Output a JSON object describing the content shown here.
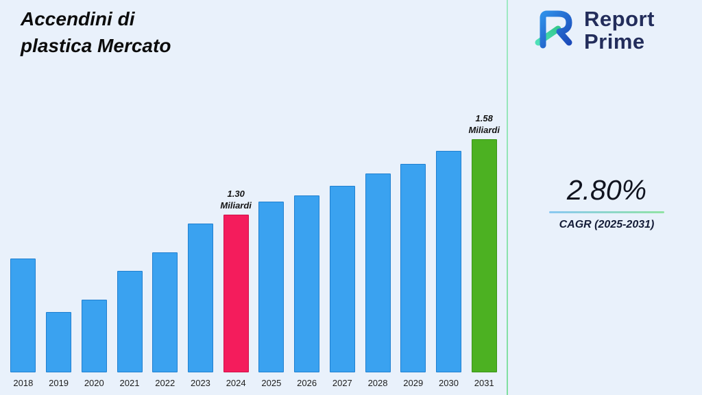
{
  "title": {
    "line1": "Accendini di",
    "line2": "plastica Mercato"
  },
  "logo": {
    "line1": "Report",
    "line2": "Prime"
  },
  "stats": {
    "value": "2.80%",
    "label": "CAGR (2025-2031)"
  },
  "colors": {
    "background": "#e9f1fb",
    "divider": "#8fe3ae",
    "navy": "#232d5b",
    "bar_blue": "#3aa2f0",
    "bar_pink": "#f41c5c",
    "bar_green": "#4cb122"
  },
  "chart_data": {
    "type": "bar",
    "title": "Accendini di plastica Mercato",
    "xlabel": "",
    "ylabel": "",
    "unit": "Miliardi",
    "categories": [
      "2018",
      "2019",
      "2020",
      "2021",
      "2022",
      "2023",
      "2024",
      "2025",
      "2026",
      "2027",
      "2028",
      "2029",
      "2030",
      "2031"
    ],
    "values": [
      1.16,
      0.99,
      1.03,
      1.12,
      1.18,
      1.27,
      1.3,
      1.34,
      1.36,
      1.39,
      1.43,
      1.46,
      1.5,
      1.58
    ],
    "ylim": [
      0.8,
      1.62
    ],
    "grid": false,
    "legend": "none",
    "annotations": [
      {
        "category": "2024",
        "lines": [
          "1.30",
          "Miliardi"
        ]
      },
      {
        "category": "2031",
        "lines": [
          "1.58",
          "Miliardi"
        ]
      }
    ],
    "bar_colors": {
      "default": {
        "fill": "#3aa2f0",
        "border": "#1f7fd0"
      },
      "2024": {
        "fill": "#f41c5c",
        "border": "#cf0f48"
      },
      "2031": {
        "fill": "#4cb122",
        "border": "#3a9418"
      }
    }
  }
}
